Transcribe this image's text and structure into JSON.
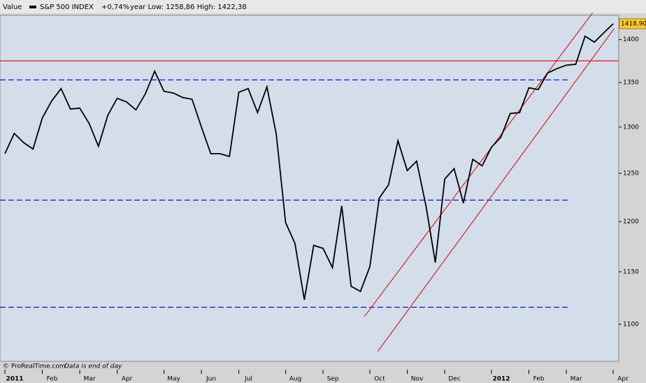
{
  "chart_data": {
    "type": "line",
    "header": {
      "label": "Value",
      "name": "S&P 500 INDEX",
      "change": "+0,74%",
      "range": "year Low: 1258,86 High: 1422,38"
    },
    "footer": {
      "source": "© ProRealTime.com",
      "note": "Data is end of day"
    },
    "categories": [
      "2011",
      null,
      null,
      null,
      "Feb",
      null,
      null,
      null,
      "Mar",
      null,
      null,
      null,
      "Apr",
      null,
      null,
      null,
      null,
      "May",
      null,
      null,
      null,
      "Jun",
      null,
      null,
      null,
      "Jul",
      null,
      null,
      null,
      null,
      "Aug",
      null,
      null,
      null,
      "Sep",
      null,
      null,
      null,
      null,
      "Oct",
      null,
      null,
      null,
      "Nov",
      null,
      null,
      null,
      "Dec",
      null,
      null,
      null,
      null,
      "2012",
      null,
      null,
      null,
      "Feb",
      null,
      null,
      null,
      "Mar",
      null,
      null,
      null,
      null,
      "Apr"
    ],
    "series": [
      {
        "name": "S&P 500 INDEX",
        "color": "#000000",
        "values": [
          1271,
          1293,
          1283,
          1276,
          1310,
          1329,
          1343,
          1320,
          1321,
          1304,
          1279,
          1313,
          1332,
          1328,
          1319,
          1337,
          1363,
          1340,
          1338,
          1333,
          1331,
          1300,
          1271,
          1271,
          1268,
          1339,
          1343,
          1316,
          1345,
          1292,
          1199,
          1178,
          1123,
          1176,
          1173,
          1154,
          1216,
          1136,
          1131,
          1155,
          1224,
          1238,
          1285,
          1253,
          1263,
          1216,
          1159,
          1244,
          1255,
          1219,
          1265,
          1258,
          1278,
          1289,
          1315,
          1316,
          1344,
          1342,
          1361,
          1366,
          1370,
          1371,
          1404,
          1397,
          1408,
          1418.9
        ],
        "last_label": "1418,90"
      }
    ],
    "hlines": [
      {
        "value": 1375,
        "color": "#e00000",
        "dash": false
      },
      {
        "value": 1353,
        "color": "#0000cc",
        "dash": true
      },
      {
        "value": 1222,
        "color": "#0000cc",
        "dash": true
      },
      {
        "value": 1116,
        "color": "#0000cc",
        "dash": true
      }
    ],
    "trendlines": [
      {
        "color": "#e00000",
        "x": [
          39.85,
          65.1
        ],
        "values": [
          1075,
          1413
        ]
      },
      {
        "color": "#e00000",
        "x": [
          38.4,
          62.8
        ],
        "values": [
          1107,
          1432
        ]
      }
    ],
    "ylim": [
      1066,
      1429
    ],
    "yticks": [
      1100,
      1150,
      1200,
      1250,
      1300,
      1350,
      1400
    ],
    "log_scale": true,
    "grid": false
  }
}
